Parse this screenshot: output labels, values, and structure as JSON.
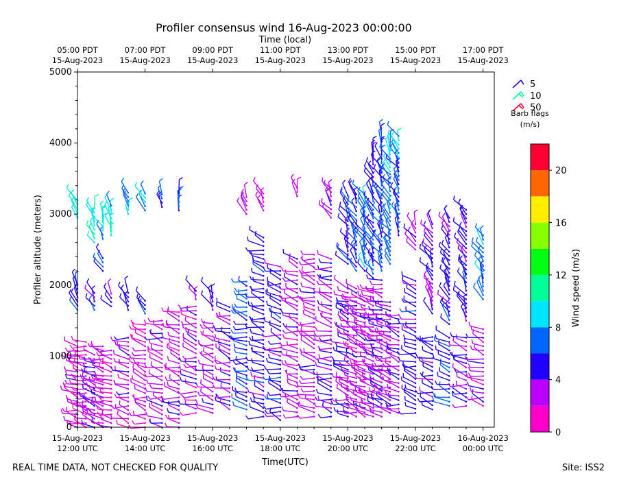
{
  "chart_data": {
    "type": "wind_barb_profile",
    "title": "Profiler consensus wind 16-Aug-2023 00:00:00",
    "top_axis_label": "Time (local)",
    "xlabel": "Time(UTC)",
    "ylabel": "Profiler altitude (meters)",
    "ylim": [
      0,
      5000
    ],
    "xlim_hours_utc": [
      12.0,
      24.2
    ],
    "y_ticks": [
      "0",
      "1000",
      "2000",
      "3000",
      "4000",
      "5000"
    ],
    "bottom_ticks": [
      {
        "hour": 12,
        "line1": "15-Aug-2023",
        "line2": "12:00 UTC"
      },
      {
        "hour": 14,
        "line1": "15-Aug-2023",
        "line2": "14:00 UTC"
      },
      {
        "hour": 16,
        "line1": "15-Aug-2023",
        "line2": "16:00 UTC"
      },
      {
        "hour": 18,
        "line1": "15-Aug-2023",
        "line2": "18:00 UTC"
      },
      {
        "hour": 20,
        "line1": "15-Aug-2023",
        "line2": "20:00 UTC"
      },
      {
        "hour": 22,
        "line1": "15-Aug-2023",
        "line2": "22:00 UTC"
      },
      {
        "hour": 24,
        "line1": "16-Aug-2023",
        "line2": "00:00 UTC"
      }
    ],
    "top_ticks": [
      {
        "hour": 12,
        "line1": "05:00 PDT",
        "line2": "15-Aug-2023"
      },
      {
        "hour": 14,
        "line1": "07:00 PDT",
        "line2": "15-Aug-2023"
      },
      {
        "hour": 16,
        "line1": "09:00 PDT",
        "line2": "15-Aug-2023"
      },
      {
        "hour": 18,
        "line1": "11:00 PDT",
        "line2": "15-Aug-2023"
      },
      {
        "hour": 20,
        "line1": "13:00 PDT",
        "line2": "15-Aug-2023"
      },
      {
        "hour": 22,
        "line1": "15:00 PDT",
        "line2": "15-Aug-2023"
      },
      {
        "hour": 24,
        "line1": "17:00 PDT",
        "line2": "15-Aug-2023"
      }
    ],
    "barb_flag_legend": {
      "entries": [
        {
          "label": "5",
          "color": "#2200dd"
        },
        {
          "label": "10",
          "color": "#00ee99"
        },
        {
          "label": "50",
          "color": "#ff0033"
        }
      ],
      "title_line1": "Barb flags",
      "title_line2": "(m/s)"
    },
    "colorbar": {
      "label": "Wind speed (m/s)",
      "range": [
        0,
        22
      ],
      "ticks": [
        "0",
        "4",
        "8",
        "12",
        "16",
        "20"
      ],
      "bands": [
        {
          "from": 0,
          "to": 2,
          "color": "#ff00cc"
        },
        {
          "from": 2,
          "to": 4,
          "color": "#bb00ff"
        },
        {
          "from": 4,
          "to": 6,
          "color": "#2200ff"
        },
        {
          "from": 6,
          "to": 8,
          "color": "#0066ff"
        },
        {
          "from": 8,
          "to": 10,
          "color": "#00e5ff"
        },
        {
          "from": 10,
          "to": 12,
          "color": "#00ff99"
        },
        {
          "from": 12,
          "to": 14,
          "color": "#00ff11"
        },
        {
          "from": 14,
          "to": 16,
          "color": "#88ff00"
        },
        {
          "from": 16,
          "to": 18,
          "color": "#ffee00"
        },
        {
          "from": 18,
          "to": 20,
          "color": "#ff6600"
        },
        {
          "from": 20,
          "to": 22,
          "color": "#ff0033"
        }
      ]
    },
    "profiles": [
      {
        "hour": 12.0,
        "low": [
          0,
          1150
        ],
        "high": [
          1650,
          2050
        ],
        "high2": [
          2950,
          3200
        ],
        "speed_low": 3,
        "speed_high": 5,
        "speed_high2": 10
      },
      {
        "hour": 12.25,
        "low": [
          0,
          1200
        ],
        "high": null,
        "high2": null,
        "speed_low": 2,
        "speed_high": 5,
        "speed_high2": 8
      },
      {
        "hour": 12.5,
        "low": [
          0,
          1050
        ],
        "high": [
          1650,
          1900
        ],
        "high2": [
          2600,
          3100
        ],
        "speed_low": 4,
        "speed_high": 5,
        "speed_high2": 10
      },
      {
        "hour": 12.75,
        "low": [
          0,
          1150
        ],
        "high": [
          2200,
          2400
        ],
        "high2": [
          2650,
          3050
        ],
        "speed_low": 3,
        "speed_high": 6,
        "speed_high2": 9
      },
      {
        "hour": 13.0,
        "low": [
          0,
          1100
        ],
        "high": [
          1700,
          1900
        ],
        "high2": [
          2700,
          3150
        ],
        "speed_low": 2,
        "speed_high": 5,
        "speed_high2": 9
      },
      {
        "hour": 13.5,
        "low": [
          0,
          1300
        ],
        "high": [
          1650,
          1900
        ],
        "high2": [
          3000,
          3300
        ],
        "speed_low": 3,
        "speed_high": 5,
        "speed_high2": 8
      },
      {
        "hour": 14.0,
        "low": [
          0,
          1450
        ],
        "high": [
          1600,
          1800
        ],
        "high2": [
          3050,
          3300
        ],
        "speed_low": 2,
        "speed_high": 5,
        "speed_high2": 8
      },
      {
        "hour": 14.5,
        "low": [
          0,
          1550
        ],
        "high": null,
        "high2": [
          3100,
          3300
        ],
        "speed_low": 3,
        "speed_high": 4,
        "speed_high2": 6
      },
      {
        "hour": 15.0,
        "low": [
          0,
          1650
        ],
        "high": null,
        "high2": [
          3050,
          3300
        ],
        "speed_low": 3,
        "speed_high": 5,
        "speed_high2": 6
      },
      {
        "hour": 15.5,
        "low": [
          200,
          1750
        ],
        "high": [
          1800,
          1950
        ],
        "high2": null,
        "speed_low": 3,
        "speed_high": 4,
        "speed_high2": 5
      },
      {
        "hour": 16.0,
        "low": [
          200,
          1500
        ],
        "high": [
          1650,
          1900
        ],
        "high2": null,
        "speed_low": 3,
        "speed_high": 4,
        "speed_high2": 5
      },
      {
        "hour": 16.5,
        "low": [
          250,
          1700
        ],
        "high": null,
        "high2": null,
        "speed_low": 4,
        "speed_high": 5,
        "speed_high2": 5
      },
      {
        "hour": 17.0,
        "low": [
          250,
          2050
        ],
        "high": null,
        "high2": [
          3000,
          3250
        ],
        "speed_low": 6,
        "speed_high": 5,
        "speed_high2": 3
      },
      {
        "hour": 17.5,
        "low": [
          150,
          2700
        ],
        "high": null,
        "high2": [
          3050,
          3300
        ],
        "speed_low": 5,
        "speed_high": 3,
        "speed_high2": 3
      },
      {
        "hour": 18.0,
        "low": [
          100,
          2300
        ],
        "high": null,
        "high2": null,
        "speed_low": 5,
        "speed_high": 3,
        "speed_high2": 3
      },
      {
        "hour": 18.5,
        "low": [
          150,
          2400
        ],
        "high": null,
        "high2": [
          3250,
          3400
        ],
        "speed_low": 3,
        "speed_high": 3,
        "speed_high2": 2
      },
      {
        "hour": 19.0,
        "low": [
          150,
          2450
        ],
        "high": null,
        "high2": null,
        "speed_low": 3,
        "speed_high": 4,
        "speed_high2": 2
      },
      {
        "hour": 19.5,
        "low": [
          150,
          2400
        ],
        "high": [
          2950,
          3400
        ],
        "high2": null,
        "speed_low": 4,
        "speed_high": 3,
        "speed_high2": 3
      },
      {
        "hour": 20.0,
        "low": [
          150,
          2000
        ],
        "high": [
          2300,
          3300
        ],
        "high2": null,
        "speed_low": 4,
        "speed_high": 5,
        "speed_high2": 3
      },
      {
        "hour": 20.25,
        "low": [
          150,
          2000
        ],
        "high": [
          2200,
          3300
        ],
        "high2": null,
        "speed_low": 3,
        "speed_high": 6,
        "speed_high2": 3
      },
      {
        "hour": 20.5,
        "low": [
          150,
          1800
        ],
        "high": [
          2200,
          3300
        ],
        "high2": null,
        "speed_low": 3,
        "speed_high": 7,
        "speed_high2": 3
      },
      {
        "hour": 20.75,
        "low": [
          150,
          2000
        ],
        "high": [
          2100,
          3300
        ],
        "high2": [
          3400,
          3900
        ],
        "speed_low": 3,
        "speed_high": 6,
        "speed_high2": 5
      },
      {
        "hour": 21.0,
        "low": [
          150,
          2100
        ],
        "high": [
          2200,
          3600
        ],
        "high2": [
          3600,
          4100
        ],
        "speed_low": 4,
        "speed_high": 6,
        "speed_high2": 6
      },
      {
        "hour": 21.25,
        "low": [
          200,
          1800
        ],
        "high": [
          2300,
          3600
        ],
        "high2": [
          3600,
          4000
        ],
        "speed_low": 3,
        "speed_high": 7,
        "speed_high2": 9
      },
      {
        "hour": 21.5,
        "low": [
          200,
          1600
        ],
        "high": [
          2700,
          3800
        ],
        "high2": [
          3800,
          4100
        ],
        "speed_low": 4,
        "speed_high": 6,
        "speed_high2": 9
      },
      {
        "hour": 22.0,
        "low": [
          200,
          2100
        ],
        "high": [
          2500,
          2900
        ],
        "high2": null,
        "speed_low": 5,
        "speed_high": 4,
        "speed_high2": 4
      },
      {
        "hour": 22.5,
        "low": [
          250,
          1300
        ],
        "high": [
          1600,
          2900
        ],
        "high2": null,
        "speed_low": 5,
        "speed_high": 4,
        "speed_high2": 3
      },
      {
        "hour": 23.0,
        "low": [
          300,
          1300
        ],
        "high": [
          1450,
          3000
        ],
        "high2": null,
        "speed_low": 6,
        "speed_high": 5,
        "speed_high2": 3
      },
      {
        "hour": 23.5,
        "low": [
          300,
          1300
        ],
        "high": [
          1500,
          3100
        ],
        "high2": null,
        "speed_low": 4,
        "speed_high": 5,
        "speed_high2": 3
      },
      {
        "hour": 24.0,
        "low": [
          300,
          1400
        ],
        "high": [
          1800,
          2700
        ],
        "high2": null,
        "speed_low": 3,
        "speed_high": 7,
        "speed_high2": 4
      }
    ]
  },
  "footer": {
    "disclaimer": "REAL TIME DATA, NOT CHECKED FOR QUALITY",
    "site": "Site: ISS2"
  }
}
